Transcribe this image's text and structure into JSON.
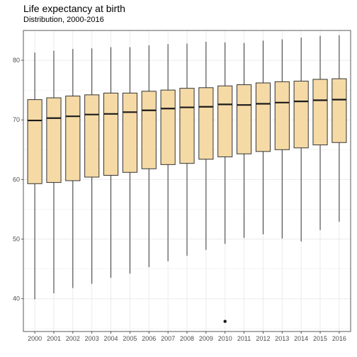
{
  "chart_data": {
    "type": "box",
    "title": "Life expectancy at birth",
    "subtitle": "Distribution, 2000-2016",
    "xlabel": "",
    "ylabel": "",
    "ylim": [
      34.5,
      85
    ],
    "yticks": [
      40,
      50,
      60,
      70,
      80
    ],
    "grid": true,
    "colors": {
      "box_fill": "#F5DAA6",
      "box_stroke": "#333333",
      "grid": "#ebebeb",
      "panel_border": "#333333"
    },
    "categories": [
      "2000",
      "2001",
      "2002",
      "2003",
      "2004",
      "2005",
      "2006",
      "2007",
      "2008",
      "2009",
      "2010",
      "2011",
      "2012",
      "2013",
      "2014",
      "2015",
      "2016"
    ],
    "boxes": [
      {
        "x": "2000",
        "min": 39.9,
        "q1": 59.3,
        "median": 69.9,
        "q3": 73.4,
        "max": 81.3,
        "outliers": []
      },
      {
        "x": "2001",
        "min": 40.9,
        "q1": 59.5,
        "median": 70.3,
        "q3": 73.7,
        "max": 81.6,
        "outliers": []
      },
      {
        "x": "2002",
        "min": 41.8,
        "q1": 59.8,
        "median": 70.6,
        "q3": 74.0,
        "max": 81.9,
        "outliers": []
      },
      {
        "x": "2003",
        "min": 42.5,
        "q1": 60.4,
        "median": 70.9,
        "q3": 74.2,
        "max": 82.0,
        "outliers": []
      },
      {
        "x": "2004",
        "min": 43.5,
        "q1": 60.7,
        "median": 71.0,
        "q3": 74.5,
        "max": 82.2,
        "outliers": []
      },
      {
        "x": "2005",
        "min": 44.2,
        "q1": 61.2,
        "median": 71.3,
        "q3": 74.5,
        "max": 82.2,
        "outliers": []
      },
      {
        "x": "2006",
        "min": 45.3,
        "q1": 61.8,
        "median": 71.6,
        "q3": 74.8,
        "max": 82.5,
        "outliers": []
      },
      {
        "x": "2007",
        "min": 46.3,
        "q1": 62.5,
        "median": 71.9,
        "q3": 75.0,
        "max": 82.7,
        "outliers": []
      },
      {
        "x": "2008",
        "min": 47.2,
        "q1": 62.7,
        "median": 72.1,
        "q3": 75.3,
        "max": 82.8,
        "outliers": []
      },
      {
        "x": "2009",
        "min": 48.2,
        "q1": 63.4,
        "median": 72.2,
        "q3": 75.4,
        "max": 83.1,
        "outliers": []
      },
      {
        "x": "2010",
        "min": 49.2,
        "q1": 63.8,
        "median": 72.6,
        "q3": 75.7,
        "max": 83.0,
        "outliers": [
          36.2
        ]
      },
      {
        "x": "2011",
        "min": 50.2,
        "q1": 64.3,
        "median": 72.5,
        "q3": 75.9,
        "max": 82.9,
        "outliers": []
      },
      {
        "x": "2012",
        "min": 50.8,
        "q1": 64.7,
        "median": 72.7,
        "q3": 76.2,
        "max": 83.3,
        "outliers": []
      },
      {
        "x": "2013",
        "min": 50.1,
        "q1": 65.0,
        "median": 72.9,
        "q3": 76.4,
        "max": 83.5,
        "outliers": []
      },
      {
        "x": "2014",
        "min": 49.6,
        "q1": 65.3,
        "median": 73.1,
        "q3": 76.5,
        "max": 83.8,
        "outliers": []
      },
      {
        "x": "2015",
        "min": 51.5,
        "q1": 65.8,
        "median": 73.3,
        "q3": 76.8,
        "max": 84.1,
        "outliers": []
      },
      {
        "x": "2016",
        "min": 52.9,
        "q1": 66.2,
        "median": 73.4,
        "q3": 76.9,
        "max": 84.2,
        "outliers": []
      }
    ]
  }
}
